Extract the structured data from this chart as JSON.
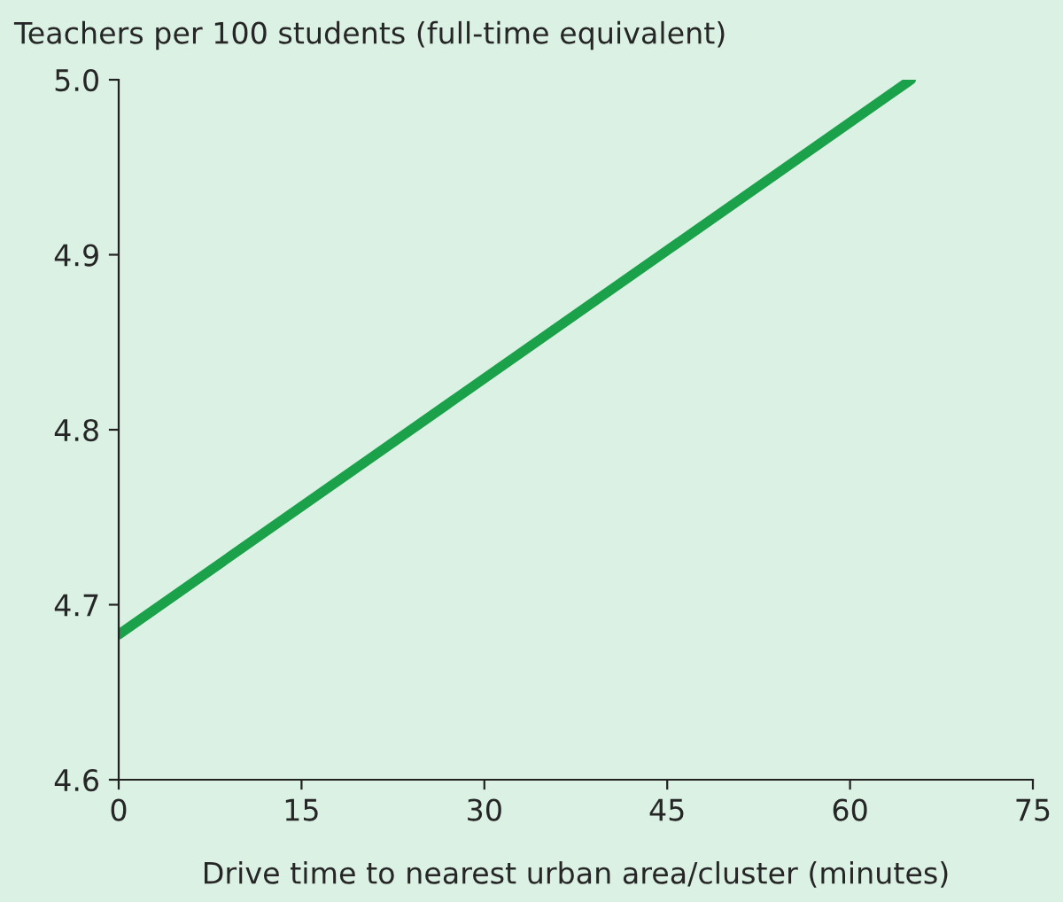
{
  "chart_data": {
    "type": "line",
    "ylabel": "Teachers per 100 students (full-time equivalent)",
    "xlabel": "Drive time to nearest urban area/cluster (minutes)",
    "x": [
      0,
      65
    ],
    "series": [
      {
        "color": "#1ba14a",
        "values": [
          4.683,
          5.0
        ]
      }
    ],
    "xlim": [
      0,
      75
    ],
    "xticks": [
      0,
      15,
      30,
      45,
      60,
      75
    ],
    "ylim": [
      4.6,
      5.0
    ],
    "yticks": [
      4.6,
      4.7,
      4.8,
      4.9,
      {
        "value": 5.0,
        "label": "5.0"
      }
    ],
    "grid": false,
    "legend": false,
    "marker": "none",
    "line_style": "solid"
  }
}
